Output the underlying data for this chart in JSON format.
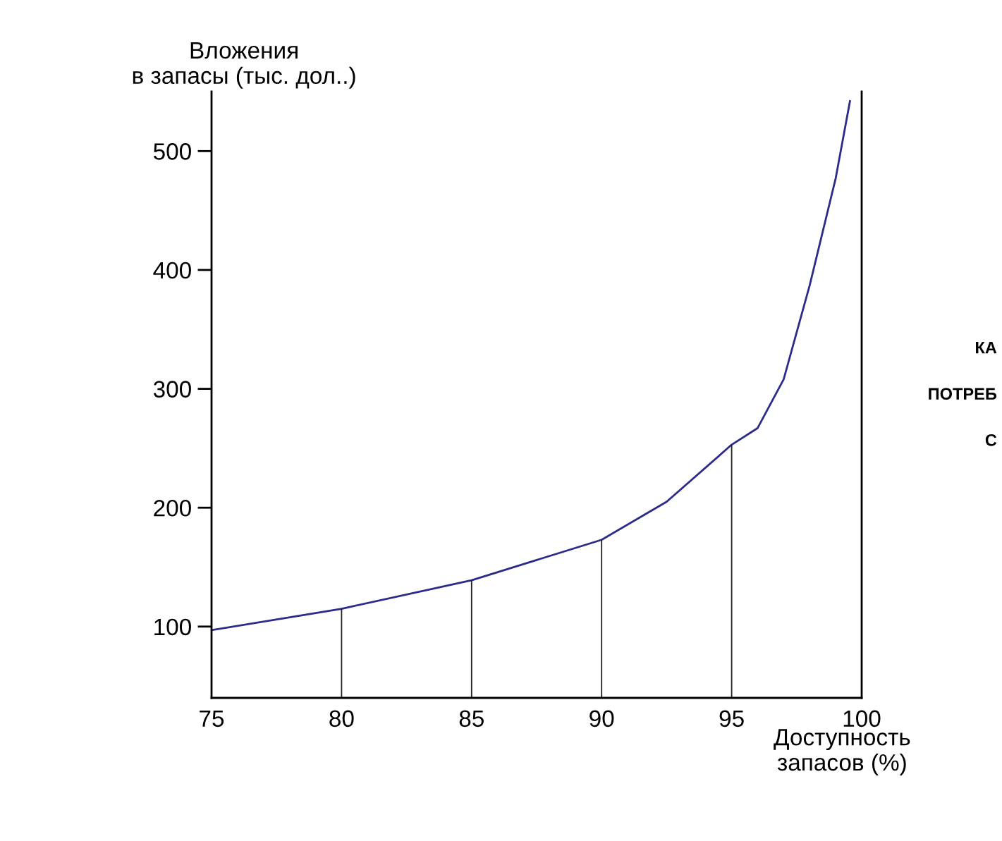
{
  "chart_data": {
    "type": "line",
    "ylabel": "Вложения\nв запасы (тыс. дол..)",
    "xlabel": "Доступность\nзапасов (%)",
    "series": [
      {
        "color": "#2b2b8c",
        "x": [
          75,
          80,
          85,
          90,
          92.5,
          95,
          96,
          97,
          98,
          99,
          99.55
        ],
        "values": [
          97,
          115,
          139,
          173,
          205,
          253,
          267,
          308,
          387,
          477,
          542
        ]
      }
    ],
    "xlim": [
      75,
      100
    ],
    "ylim": [
      40,
      550
    ],
    "xticks": [
      75,
      80,
      85,
      90,
      95,
      100
    ],
    "yticks": [
      100,
      200,
      300,
      400,
      500
    ],
    "ref_lines": [
      {
        "axis": "x",
        "value": 80,
        "color": "#222222"
      },
      {
        "axis": "x",
        "value": 85,
        "color": "#222222"
      },
      {
        "axis": "x",
        "value": 90,
        "color": "#222222"
      },
      {
        "axis": "x",
        "value": 95,
        "color": "#222222"
      }
    ],
    "annotations": [
      "КА",
      "ПОТРЕБ",
      "С"
    ],
    "grid": false,
    "legend": false
  }
}
